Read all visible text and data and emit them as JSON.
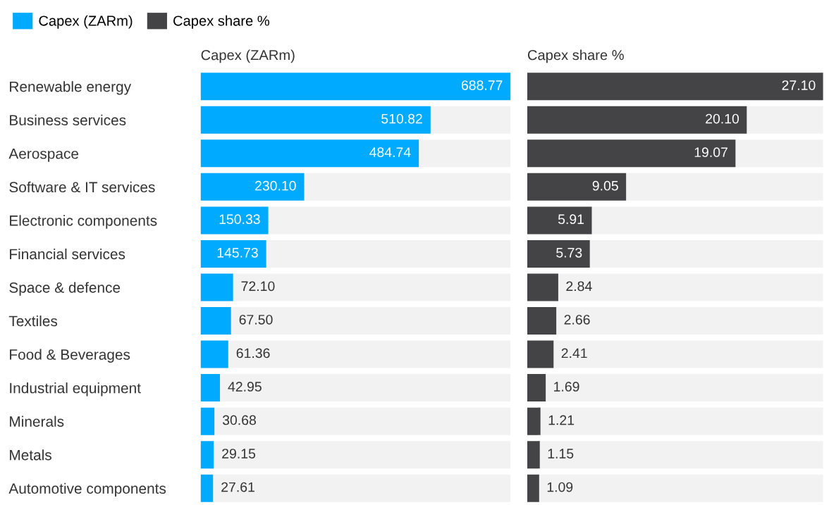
{
  "chart_data": [
    {
      "type": "bar",
      "orientation": "horizontal",
      "title": "Capex (ZARm)",
      "categories": [
        "Renewable energy",
        "Business services",
        "Aerospace",
        "Software & IT services",
        "Electronic components",
        "Financial services",
        "Space & defence",
        "Textiles",
        "Food & Beverages",
        "Industrial equipment",
        "Minerals",
        "Metals",
        "Automotive components"
      ],
      "series": [
        {
          "name": "Capex (ZARm)",
          "color": "#00aaff",
          "values": [
            688.77,
            510.82,
            484.74,
            230.1,
            150.33,
            145.73,
            72.1,
            67.5,
            61.36,
            42.95,
            30.68,
            29.15,
            27.61
          ],
          "value_labels": [
            "688.77",
            "510.82",
            "484.74",
            "230.10",
            "150.33",
            "145.73",
            "72.10",
            "67.50",
            "61.36",
            "42.95",
            "30.68",
            "29.15",
            "27.61"
          ]
        }
      ],
      "tick_labels": "y",
      "legend": "top left",
      "grid": false
    },
    {
      "type": "bar",
      "orientation": "horizontal",
      "title": "Capex share %",
      "categories": [
        null,
        null,
        null,
        null,
        null,
        null,
        null,
        null,
        null,
        null,
        null,
        null,
        null
      ],
      "series": [
        {
          "name": "Capex share %",
          "color": "#444446",
          "values": [
            27.1,
            20.1,
            19.07,
            9.05,
            5.91,
            5.73,
            2.84,
            2.66,
            2.41,
            1.69,
            1.21,
            1.15,
            1.09
          ],
          "value_labels": [
            "27.10",
            "20.10",
            "19.07",
            "9.05",
            "5.91",
            "5.73",
            "2.84",
            "2.66",
            "2.41",
            "1.69",
            "1.21",
            "1.15",
            "1.09"
          ]
        }
      ],
      "tick_labels": false,
      "legend": "top left",
      "grid": false
    }
  ]
}
